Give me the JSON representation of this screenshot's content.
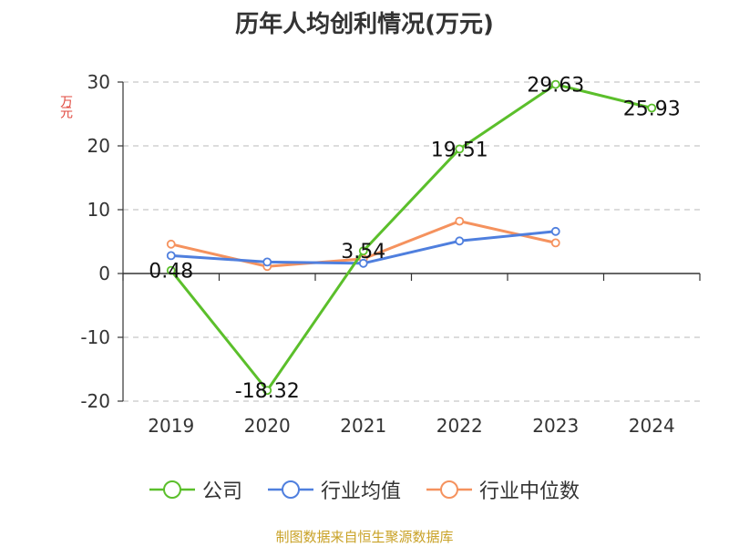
{
  "title": "历年人均创利情况(万元)",
  "ylabel": "万元",
  "source": "制图数据来自恒生聚源数据库",
  "chart_data": {
    "type": "line",
    "title": "历年人均创利情况(万元)",
    "xlabel": "",
    "ylabel": "万元",
    "categories": [
      "2019",
      "2020",
      "2021",
      "2022",
      "2023",
      "2024"
    ],
    "ylim": [
      -20,
      30
    ],
    "yticks": [
      -20,
      -10,
      0,
      10,
      20,
      30
    ],
    "ytick_labels": [
      "-20",
      "-10",
      "0",
      "10",
      "20",
      "30"
    ],
    "grid": true,
    "legend_position": "bottom",
    "series": [
      {
        "name": "公司",
        "color": "#5bbf2b",
        "values": [
          0.48,
          -18.32,
          3.54,
          19.51,
          29.63,
          25.93
        ],
        "labels": [
          "0.48",
          "-18.32",
          "3.54",
          "19.51",
          "29.63",
          "25.93"
        ]
      },
      {
        "name": "行业均值",
        "color": "#4f7fde",
        "values": [
          2.8,
          1.8,
          1.6,
          5.1,
          6.6,
          null
        ]
      },
      {
        "name": "行业中位数",
        "color": "#f5925e",
        "values": [
          4.6,
          1.1,
          2.3,
          8.2,
          4.8,
          null
        ]
      }
    ]
  }
}
